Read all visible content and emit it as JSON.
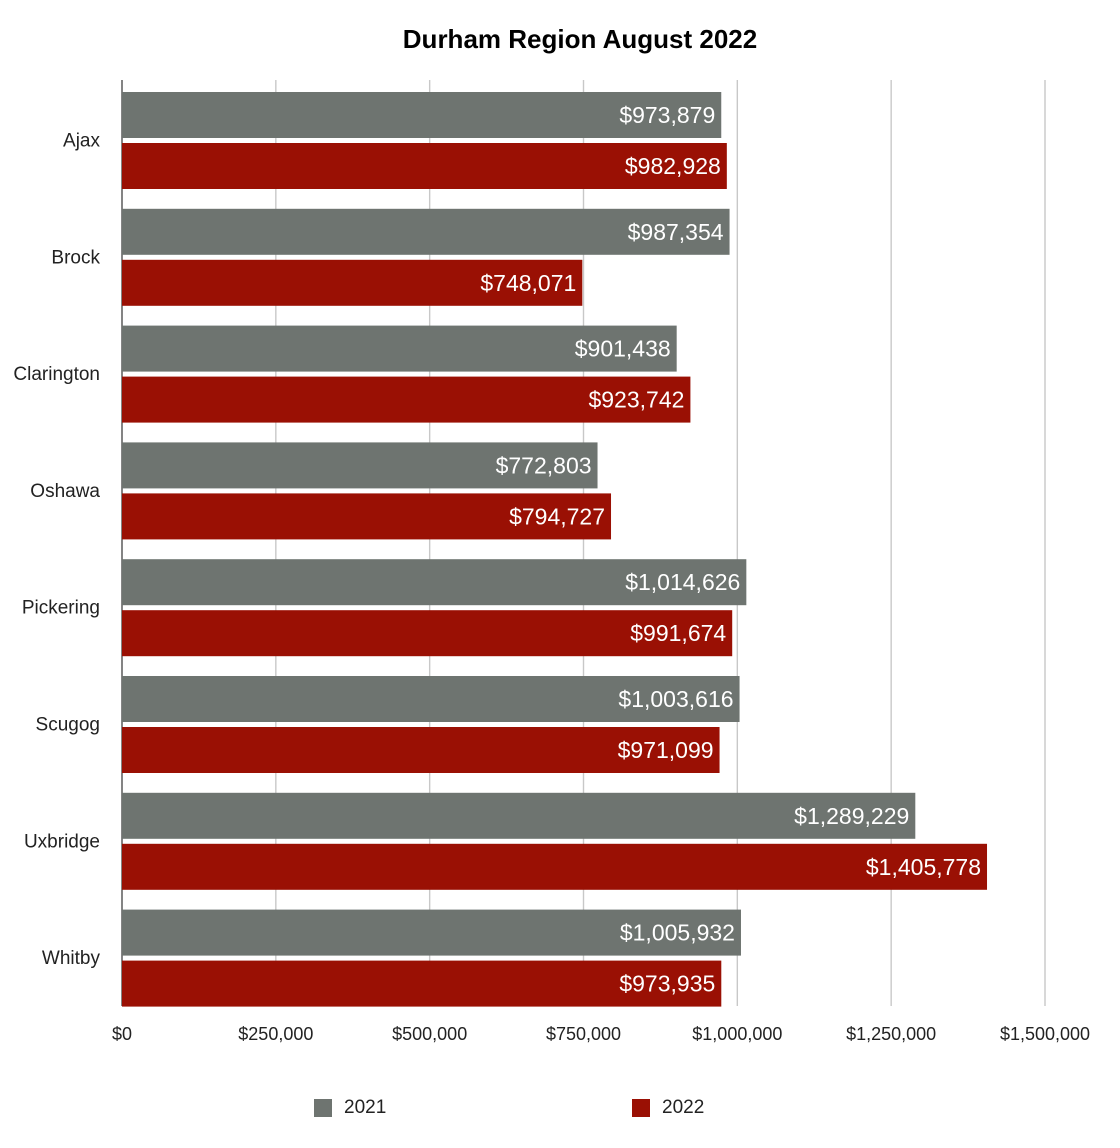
{
  "chart_data": {
    "type": "bar",
    "orientation": "horizontal",
    "title": "Durham Region August 2022",
    "xlabel": "",
    "ylabel": "",
    "categories": [
      "Ajax",
      "Brock",
      "Clarington",
      "Oshawa",
      "Pickering",
      "Scugog",
      "Uxbridge",
      "Whitby"
    ],
    "series": [
      {
        "name": "2021",
        "color": "#6e7470",
        "values": [
          973879,
          987354,
          901438,
          772803,
          1014626,
          1003616,
          1289229,
          1005932
        ],
        "labels": [
          "$973,879",
          "$987,354",
          "$901,438",
          "$772,803",
          "$1,014,626",
          "$1,003,616",
          "$1,289,229",
          "$1,005,932"
        ]
      },
      {
        "name": "2022",
        "color": "#9a1004",
        "values": [
          982928,
          748071,
          923742,
          794727,
          991674,
          971099,
          1405778,
          973935
        ],
        "labels": [
          "$982,928",
          "$748,071",
          "$923,742",
          "$794,727",
          "$991,674",
          "$971,099",
          "$1,405,778",
          "$973,935"
        ]
      }
    ],
    "xlim": [
      0,
      1500000
    ],
    "x_ticks": [
      0,
      250000,
      500000,
      750000,
      1000000,
      1250000,
      1500000
    ],
    "x_tick_labels": [
      "$0",
      "$250,000",
      "$500,000",
      "$750,000",
      "$1,000,000",
      "$1,250,000",
      "$1,500,000"
    ],
    "grid": true,
    "legend_position": "bottom"
  }
}
